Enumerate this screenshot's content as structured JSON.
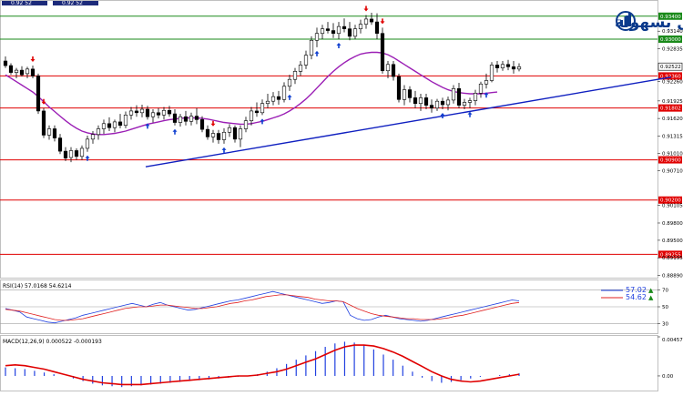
{
  "header": {
    "bid_text": "0.92 52",
    "ask_text": "0.92 52"
  },
  "logo": {
    "text": "التداول بسهولة",
    "color": "#0b3a8c"
  },
  "colors": {
    "support_line": "#e00000",
    "resistance_line": "#1a8a1a",
    "trend_line": "#1020c0",
    "moving_average": "#9b1fb5",
    "candle": "#000000",
    "buy_arrow": "#1040d0",
    "sell_arrow": "#e00000",
    "rsi_main": "#2040e0",
    "rsi_signal": "#e02020",
    "macd_hist": "#2040e0",
    "macd_signal": "#e00000"
  },
  "chart_data": [
    {
      "type": "candlestick",
      "ylim": [
        0.88865,
        0.9365
      ],
      "price_ticks": [
        "0.93140",
        "0.92835",
        "0.92260",
        "0.91925",
        "0.91620",
        "0.91315",
        "0.91010",
        "0.90710",
        "0.90105",
        "0.89800",
        "0.89500",
        "0.89195",
        "0.88890"
      ],
      "current_price": "0.92522",
      "resistance_levels": [
        {
          "value": 0.934,
          "label": "0.93400"
        },
        {
          "value": 0.93,
          "label": "0.93000"
        }
      ],
      "support_levels": [
        {
          "value": 0.9236,
          "label": "0.92360"
        },
        {
          "value": 0.91802,
          "label": "0.91802"
        },
        {
          "value": 0.909,
          "label": "0.90900"
        },
        {
          "value": 0.902,
          "label": "0.90200"
        },
        {
          "value": 0.89255,
          "label": "0.89255"
        }
      ],
      "trendline": {
        "start": [
          24,
          0.9078
        ],
        "end": [
          106,
          0.9234
        ]
      },
      "candles": [
        [
          0.9262,
          0.927,
          0.925,
          0.9254
        ],
        [
          0.9254,
          0.9258,
          0.9238,
          0.9242
        ],
        [
          0.9242,
          0.925,
          0.9232,
          0.9246
        ],
        [
          0.9246,
          0.9253,
          0.9235,
          0.9238
        ],
        [
          0.924,
          0.9252,
          0.9232,
          0.9248
        ],
        [
          0.9248,
          0.9254,
          0.9232,
          0.9236
        ],
        [
          0.9236,
          0.924,
          0.917,
          0.9175
        ],
        [
          0.9175,
          0.918,
          0.9128,
          0.9133
        ],
        [
          0.9133,
          0.915,
          0.9125,
          0.9144
        ],
        [
          0.9144,
          0.915,
          0.9122,
          0.9128
        ],
        [
          0.9128,
          0.9135,
          0.91,
          0.9105
        ],
        [
          0.9105,
          0.9112,
          0.9088,
          0.9093
        ],
        [
          0.9094,
          0.9112,
          0.9086,
          0.9106
        ],
        [
          0.9106,
          0.911,
          0.909,
          0.9096
        ],
        [
          0.9096,
          0.9115,
          0.909,
          0.911
        ],
        [
          0.911,
          0.9132,
          0.9104,
          0.9126
        ],
        [
          0.9126,
          0.914,
          0.9118,
          0.9134
        ],
        [
          0.9134,
          0.915,
          0.9125,
          0.9144
        ],
        [
          0.9144,
          0.916,
          0.9135,
          0.9153
        ],
        [
          0.9153,
          0.9164,
          0.914,
          0.9146
        ],
        [
          0.9146,
          0.916,
          0.9138,
          0.9156
        ],
        [
          0.9156,
          0.917,
          0.9145,
          0.915
        ],
        [
          0.915,
          0.9174,
          0.9145,
          0.9168
        ],
        [
          0.9168,
          0.9182,
          0.916,
          0.9175
        ],
        [
          0.9175,
          0.9185,
          0.9165,
          0.9172
        ],
        [
          0.9172,
          0.9186,
          0.9164,
          0.9178
        ],
        [
          0.9178,
          0.9184,
          0.916,
          0.9165
        ],
        [
          0.9165,
          0.9178,
          0.9155,
          0.9172
        ],
        [
          0.9172,
          0.918,
          0.9162,
          0.9168
        ],
        [
          0.9168,
          0.9182,
          0.916,
          0.9176
        ],
        [
          0.9176,
          0.9184,
          0.9165,
          0.917
        ],
        [
          0.917,
          0.9178,
          0.915,
          0.9155
        ],
        [
          0.9155,
          0.917,
          0.9148,
          0.9165
        ],
        [
          0.9165,
          0.9175,
          0.915,
          0.9157
        ],
        [
          0.9157,
          0.9172,
          0.915,
          0.9166
        ],
        [
          0.9166,
          0.918,
          0.9152,
          0.916
        ],
        [
          0.916,
          0.9166,
          0.9138,
          0.9143
        ],
        [
          0.9143,
          0.915,
          0.9125,
          0.913
        ],
        [
          0.913,
          0.9142,
          0.912,
          0.9136
        ],
        [
          0.9136,
          0.9142,
          0.9118,
          0.9125
        ],
        [
          0.9125,
          0.9145,
          0.9118,
          0.9138
        ],
        [
          0.9138,
          0.9152,
          0.913,
          0.9146
        ],
        [
          0.9146,
          0.915,
          0.912,
          0.9126
        ],
        [
          0.9126,
          0.915,
          0.9112,
          0.9144
        ],
        [
          0.9144,
          0.9165,
          0.9138,
          0.9158
        ],
        [
          0.9158,
          0.9182,
          0.915,
          0.9175
        ],
        [
          0.9175,
          0.919,
          0.9165,
          0.9172
        ],
        [
          0.9172,
          0.9195,
          0.9168,
          0.9188
        ],
        [
          0.9188,
          0.9205,
          0.918,
          0.9192
        ],
        [
          0.9192,
          0.9208,
          0.9185,
          0.92
        ],
        [
          0.92,
          0.921,
          0.9186,
          0.9195
        ],
        [
          0.9195,
          0.9225,
          0.919,
          0.9218
        ],
        [
          0.9218,
          0.9238,
          0.921,
          0.923
        ],
        [
          0.923,
          0.925,
          0.9222,
          0.9244
        ],
        [
          0.9244,
          0.9262,
          0.9236,
          0.9255
        ],
        [
          0.9255,
          0.928,
          0.9248,
          0.9272
        ],
        [
          0.9272,
          0.9305,
          0.9265,
          0.9298
        ],
        [
          0.9298,
          0.932,
          0.9286,
          0.931
        ],
        [
          0.931,
          0.9325,
          0.93,
          0.9318
        ],
        [
          0.9318,
          0.933,
          0.931,
          0.9315
        ],
        [
          0.9315,
          0.9328,
          0.9302,
          0.931
        ],
        [
          0.931,
          0.933,
          0.93,
          0.9322
        ],
        [
          0.9322,
          0.9336,
          0.9312,
          0.9318
        ],
        [
          0.9318,
          0.933,
          0.9298,
          0.9305
        ],
        [
          0.9305,
          0.9325,
          0.93,
          0.9318
        ],
        [
          0.9318,
          0.9334,
          0.931,
          0.9326
        ],
        [
          0.9326,
          0.9342,
          0.9318,
          0.9335
        ],
        [
          0.9335,
          0.9346,
          0.9325,
          0.933
        ],
        [
          0.933,
          0.9345,
          0.93,
          0.931
        ],
        [
          0.931,
          0.932,
          0.924,
          0.9245
        ],
        [
          0.9245,
          0.9262,
          0.9232,
          0.9256
        ],
        [
          0.9256,
          0.9262,
          0.9228,
          0.9235
        ],
        [
          0.9235,
          0.924,
          0.919,
          0.9195
        ],
        [
          0.9195,
          0.922,
          0.9185,
          0.9212
        ],
        [
          0.9212,
          0.9218,
          0.919,
          0.9198
        ],
        [
          0.9198,
          0.921,
          0.918,
          0.9188
        ],
        [
          0.9188,
          0.9205,
          0.9175,
          0.9198
        ],
        [
          0.9198,
          0.9205,
          0.9178,
          0.9185
        ],
        [
          0.9185,
          0.9195,
          0.9172,
          0.918
        ],
        [
          0.918,
          0.9196,
          0.9175,
          0.9192
        ],
        [
          0.9192,
          0.9198,
          0.9178,
          0.9186
        ],
        [
          0.9186,
          0.92,
          0.9176,
          0.9194
        ],
        [
          0.9194,
          0.922,
          0.9188,
          0.9214
        ],
        [
          0.9214,
          0.9224,
          0.918,
          0.9185
        ],
        [
          0.9185,
          0.9196,
          0.9178,
          0.919
        ],
        [
          0.919,
          0.9198,
          0.918,
          0.9193
        ],
        [
          0.9193,
          0.9212,
          0.9185,
          0.9206
        ],
        [
          0.9206,
          0.9226,
          0.9198,
          0.9222
        ],
        [
          0.9222,
          0.924,
          0.9214,
          0.9228
        ],
        [
          0.9228,
          0.926,
          0.9225,
          0.9255
        ],
        [
          0.9255,
          0.9262,
          0.9242,
          0.925
        ],
        [
          0.925,
          0.9262,
          0.9245,
          0.9256
        ],
        [
          0.9256,
          0.9264,
          0.9246,
          0.9252
        ],
        [
          0.9252,
          0.9262,
          0.924,
          0.9248
        ],
        [
          0.9248,
          0.9258,
          0.9244,
          0.9252
        ]
      ],
      "moving_average": [
        0.9238,
        0.9232,
        0.9226,
        0.922,
        0.9214,
        0.9208,
        0.92,
        0.9191,
        0.9182,
        0.9174,
        0.9166,
        0.9158,
        0.9151,
        0.9145,
        0.914,
        0.9137,
        0.9135,
        0.9134,
        0.9134,
        0.9135,
        0.9136,
        0.9138,
        0.914,
        0.9143,
        0.9146,
        0.9149,
        0.9152,
        0.9154,
        0.9156,
        0.9158,
        0.916,
        0.9161,
        0.9162,
        0.9163,
        0.9163,
        0.9163,
        0.9162,
        0.9161,
        0.9159,
        0.9157,
        0.9155,
        0.9154,
        0.9153,
        0.9152,
        0.9152,
        0.9153,
        0.9155,
        0.9157,
        0.916,
        0.9163,
        0.9166,
        0.917,
        0.9175,
        0.9181,
        0.9188,
        0.9196,
        0.9205,
        0.9215,
        0.9225,
        0.9235,
        0.9244,
        0.9252,
        0.9259,
        0.9265,
        0.927,
        0.9274,
        0.9276,
        0.9277,
        0.9277,
        0.9276,
        0.9273,
        0.9268,
        0.9262,
        0.9256,
        0.925,
        0.9244,
        0.9238,
        0.9232,
        0.9226,
        0.9221,
        0.9216,
        0.9212,
        0.9209,
        0.9207,
        0.9206,
        0.9205,
        0.9205,
        0.9205,
        0.9206,
        0.9207,
        0.9208,
        null,
        null,
        null,
        null
      ],
      "buy_signals": [
        15,
        26,
        31,
        40,
        47,
        52,
        57,
        61,
        80,
        85,
        88
      ],
      "sell_signals": [
        5,
        7,
        38,
        66,
        69
      ]
    },
    {
      "type": "line",
      "title": "RSI(14) 57.0168 54.6214",
      "ylim": [
        20,
        80
      ],
      "levels": [
        70,
        50,
        30
      ],
      "level_labels": [
        "70",
        "50",
        "30"
      ],
      "legend": [
        {
          "text": "57.02",
          "color": "#2040e0"
        },
        {
          "text": "54.62",
          "color": "#e02020"
        }
      ],
      "series": [
        {
          "values": [
            48,
            46,
            44,
            38,
            36,
            34,
            32,
            31,
            33,
            35,
            37,
            40,
            42,
            44,
            46,
            48,
            50,
            52,
            54,
            52,
            50,
            53,
            55,
            52,
            50,
            48,
            46,
            47,
            49,
            51,
            53,
            55,
            57,
            58,
            60,
            62,
            64,
            66,
            68,
            66,
            64,
            62,
            60,
            58,
            56,
            54,
            55,
            57,
            56,
            40,
            36,
            34,
            35,
            38,
            40,
            38,
            36,
            35,
            34,
            33,
            34,
            36,
            38,
            40,
            42,
            44,
            46,
            48,
            50,
            52,
            54,
            56,
            58,
            57
          ]
        },
        {
          "values": [
            47,
            46,
            45,
            43,
            41,
            39,
            37,
            35,
            34,
            34,
            35,
            36,
            38,
            40,
            42,
            44,
            46,
            48,
            49,
            50,
            50,
            51,
            52,
            52,
            51,
            50,
            49,
            48,
            48,
            49,
            50,
            52,
            54,
            55,
            57,
            58,
            60,
            62,
            63,
            64,
            64,
            63,
            62,
            61,
            59,
            58,
            57,
            57,
            56,
            52,
            48,
            45,
            42,
            40,
            39,
            38,
            37,
            36,
            36,
            35,
            35,
            35,
            36,
            37,
            39,
            40,
            42,
            44,
            46,
            48,
            50,
            52,
            54,
            55
          ]
        }
      ]
    },
    {
      "type": "bar",
      "title": "MACD(12,26,9) 0.000522 -0.000193",
      "ylim": [
        -0.0016,
        0.004573
      ],
      "ytick_labels": [
        "0.004573",
        "0.00"
      ],
      "histogram": [
        0.001,
        0.0009,
        0.0008,
        0.0006,
        0.0004,
        0.0002,
        0.0,
        -0.0003,
        -0.0006,
        -0.0009,
        -0.0011,
        -0.0012,
        -0.0013,
        -0.0012,
        -0.0011,
        -0.001,
        -0.0009,
        -0.0008,
        -0.0007,
        -0.0006,
        -0.0005,
        -0.0004,
        -0.0003,
        -0.0002,
        -0.0001,
        0.0,
        0.0002,
        0.0005,
        0.0009,
        0.0014,
        0.0019,
        0.0024,
        0.0029,
        0.0034,
        0.0038,
        0.004,
        0.0039,
        0.0036,
        0.0031,
        0.0025,
        0.0019,
        0.0012,
        0.0005,
        -0.0002,
        -0.0006,
        -0.0008,
        -0.0007,
        -0.0005,
        -0.0003,
        -0.0001,
        0.0,
        0.0001,
        0.0002,
        0.0003
      ],
      "signal": [
        0.0012,
        0.0013,
        0.0012,
        0.001,
        0.0008,
        0.0005,
        0.0002,
        -0.0001,
        -0.0004,
        -0.0006,
        -0.0008,
        -0.0009,
        -0.001,
        -0.001,
        -0.001,
        -0.0009,
        -0.0008,
        -0.0007,
        -0.0006,
        -0.0005,
        -0.0004,
        -0.0003,
        -0.0002,
        -0.0001,
        0.0,
        0.0,
        0.0001,
        0.0003,
        0.0005,
        0.0008,
        0.0012,
        0.0016,
        0.002,
        0.0025,
        0.003,
        0.0034,
        0.0036,
        0.0036,
        0.0035,
        0.0032,
        0.0028,
        0.0023,
        0.0017,
        0.0011,
        0.0005,
        0.0,
        -0.0004,
        -0.0006,
        -0.0007,
        -0.0006,
        -0.0004,
        -0.0002,
        0.0,
        0.0002
      ]
    }
  ]
}
